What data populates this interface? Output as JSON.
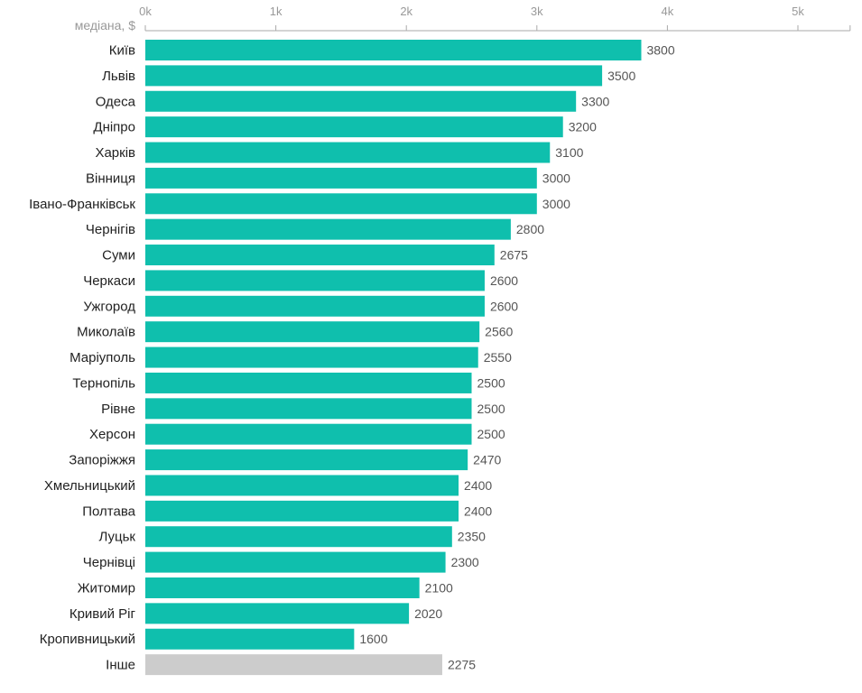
{
  "chart_data": {
    "type": "bar",
    "orientation": "horizontal",
    "unit_label": "медіана, $",
    "x_ticks": [
      0,
      1000,
      2000,
      3000,
      4000,
      5000
    ],
    "x_tick_labels": [
      "0k",
      "1k",
      "2k",
      "3k",
      "4k",
      "5k"
    ],
    "xlim": [
      0,
      5400
    ],
    "grid": false,
    "categories": [
      "Київ",
      "Львів",
      "Одеса",
      "Дніпро",
      "Харків",
      "Вінниця",
      "Івано-Франківськ",
      "Чернігів",
      "Суми",
      "Черкаси",
      "Ужгород",
      "Миколаїв",
      "Маріуполь",
      "Тернопіль",
      "Рівне",
      "Херсон",
      "Запоріжжя",
      "Хмельницький",
      "Полтава",
      "Луцьк",
      "Чернівці",
      "Житомир",
      "Кривий Ріг",
      "Кропивницький",
      "Інше"
    ],
    "values": [
      3800,
      3500,
      3300,
      3200,
      3100,
      3000,
      3000,
      2800,
      2675,
      2600,
      2600,
      2560,
      2550,
      2500,
      2500,
      2500,
      2470,
      2400,
      2400,
      2350,
      2300,
      2100,
      2020,
      1600,
      2275
    ],
    "colors": {
      "bar": "#0fbfad",
      "other_bar": "#cccccc",
      "axis": "#aaaaaa"
    },
    "highlight_category": "Інше"
  }
}
